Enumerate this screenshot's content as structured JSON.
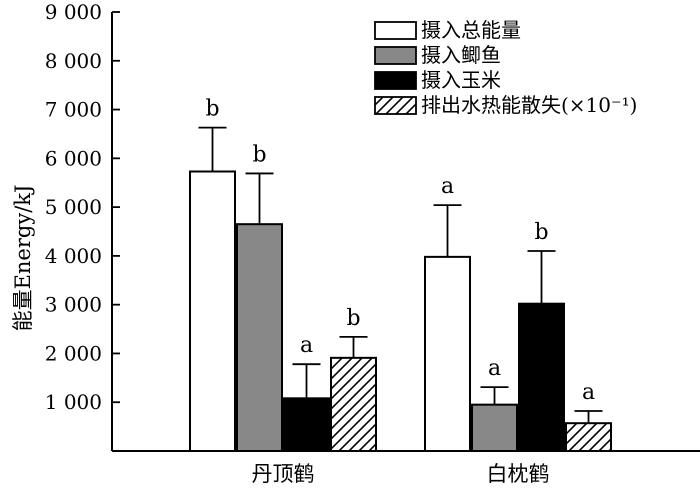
{
  "chart_data": {
    "type": "bar",
    "ylabel": "能量Energy/kJ",
    "ylim": [
      0,
      9000
    ],
    "yticks": [
      {
        "value": 1000,
        "label": "1 000"
      },
      {
        "value": 2000,
        "label": "2 000"
      },
      {
        "value": 3000,
        "label": "3 000"
      },
      {
        "value": 4000,
        "label": "4 000"
      },
      {
        "value": 5000,
        "label": "5 000"
      },
      {
        "value": 6000,
        "label": "6 000"
      },
      {
        "value": 7000,
        "label": "7 000"
      },
      {
        "value": 8000,
        "label": "8 000"
      },
      {
        "value": 9000,
        "label": "9 000"
      }
    ],
    "categories": [
      "丹顶鹤",
      "白枕鹤"
    ],
    "grid": false,
    "legend_position": "top-right",
    "series": [
      {
        "name": "摄入总能量",
        "fill": "#ffffff",
        "pattern": "none",
        "values": [
          5730,
          3980
        ],
        "errors": [
          900,
          1060
        ],
        "letters": [
          "b",
          "a"
        ]
      },
      {
        "name": "摄入鲫鱼",
        "fill": "#888888",
        "pattern": "none",
        "values": [
          4650,
          950
        ],
        "errors": [
          1040,
          360
        ],
        "letters": [
          "b",
          "a"
        ]
      },
      {
        "name": "摄入玉米",
        "fill": "#000000",
        "pattern": "none",
        "values": [
          1080,
          3020
        ],
        "errors": [
          700,
          1080
        ],
        "letters": [
          "a",
          "b"
        ]
      },
      {
        "name": "排出水热能散失(×10⁻¹)",
        "fill": "#ffffff",
        "pattern": "hatch",
        "values": [
          1910,
          570
        ],
        "errors": [
          430,
          250
        ],
        "letters": [
          "b",
          "a"
        ]
      }
    ]
  }
}
